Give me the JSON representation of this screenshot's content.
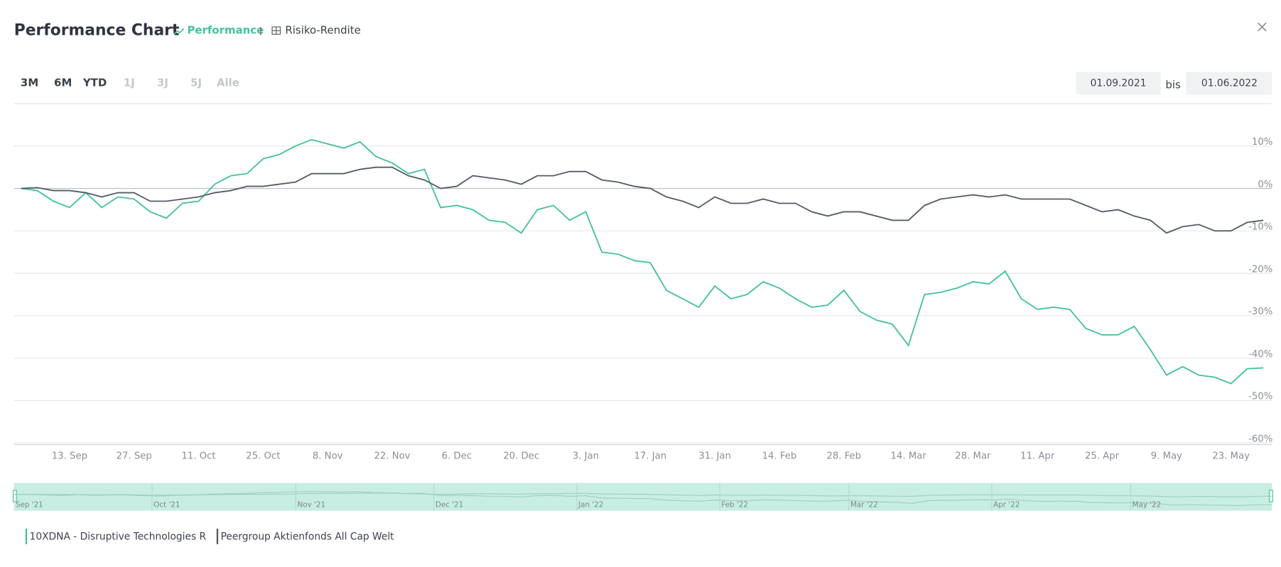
{
  "header": {
    "title": "Performance Chart",
    "tab_active": "Performance",
    "tab_other": "Risiko-Rendite"
  },
  "periods": [
    "3M",
    "6M",
    "YTD",
    "1J",
    "3J",
    "5J",
    "Alle"
  ],
  "date_range": {
    "from": "01.09.2021",
    "separator": "bis",
    "to": "01.06.2022"
  },
  "navigator": {
    "labels": [
      "Sep '21",
      "Oct '21",
      "Nov '21",
      "Dec '21",
      "Jan '22",
      "Feb '22",
      "Mar '22",
      "Apr '22",
      "May '22"
    ]
  },
  "chart_data": {
    "type": "line",
    "categories": [
      null,
      null,
      null,
      "13. Sep",
      null,
      null,
      null,
      "27. Sep",
      null,
      null,
      null,
      "11. Oct",
      null,
      null,
      null,
      "25. Oct",
      null,
      null,
      null,
      "8. Nov",
      null,
      null,
      null,
      "22. Nov",
      null,
      null,
      null,
      "6. Dec",
      null,
      null,
      null,
      "20. Dec",
      null,
      null,
      null,
      "3. Jan",
      null,
      null,
      null,
      "17. Jan",
      null,
      null,
      null,
      "31. Jan",
      null,
      null,
      null,
      "14. Feb",
      null,
      null,
      null,
      "28. Feb",
      null,
      null,
      null,
      "14. Mar",
      null,
      null,
      null,
      "28. Mar",
      null,
      null,
      null,
      "11. Apr",
      null,
      null,
      null,
      "25. Apr",
      null,
      null,
      null,
      "9. May",
      null,
      null,
      null,
      "23. May",
      null,
      null
    ],
    "series": [
      {
        "name": "10XDNA - Disruptive Technologies R",
        "color": "#45c19c",
        "values": [
          0,
          -0.5,
          -3,
          -4.5,
          -1,
          -4.5,
          -2,
          -2.5,
          -5.5,
          -7,
          -3.5,
          -3,
          1,
          3,
          3.5,
          7,
          8,
          10,
          11.5,
          10.5,
          9.5,
          11,
          7.5,
          6,
          3.5,
          4.5,
          -4.5,
          -4,
          -5,
          -7.5,
          -8,
          -10.5,
          -5,
          -4,
          -7.5,
          -5.5,
          -15,
          -15.5,
          -17,
          -17.5,
          -24,
          -26,
          -28,
          -23,
          -26,
          -25,
          -22,
          -23.5,
          -26,
          -28,
          -27.5,
          -24,
          -29,
          -31,
          -32,
          -37,
          -25,
          -24.5,
          -23.5,
          -22,
          -22.5,
          -19.5,
          -26,
          -28.5,
          -28,
          -28.5,
          -33,
          -34.5,
          -34.5,
          -32.5,
          -38,
          -44,
          -42,
          -44,
          -44.5,
          -46,
          -42.5,
          -42.3
        ]
      },
      {
        "name": "Peergroup Aktienfonds All Cap Welt",
        "color": "#555b66",
        "values": [
          0,
          0.2,
          -0.5,
          -0.5,
          -1,
          -2,
          -1,
          -1,
          -3,
          -3,
          -2.5,
          -2,
          -1,
          -0.5,
          0.5,
          0.5,
          1,
          1.5,
          3.5,
          3.5,
          3.5,
          4.5,
          5,
          5,
          3,
          2,
          0,
          0.5,
          3,
          2.5,
          2,
          1,
          3,
          3,
          4,
          4,
          2,
          1.5,
          0.5,
          0,
          -2,
          -3,
          -4.5,
          -2,
          -3.5,
          -3.5,
          -2.5,
          -3.5,
          -3.5,
          -5.5,
          -6.5,
          -5.5,
          -5.5,
          -6.5,
          -7.5,
          -7.5,
          -4,
          -2.5,
          -2,
          -1.5,
          -2,
          -1.5,
          -2.5,
          -2.5,
          -2.5,
          -2.5,
          -4,
          -5.5,
          -5,
          -6.5,
          -7.5,
          -10.5,
          -9,
          -8.5,
          -10,
          -10,
          -8,
          -7.5
        ]
      }
    ],
    "ylim": [
      -60,
      20
    ],
    "yticks": [
      {
        "value": -60,
        "label": "-60%"
      },
      {
        "value": -50,
        "label": "-50%"
      },
      {
        "value": -40,
        "label": "-40%"
      },
      {
        "value": -30,
        "label": "-30%"
      },
      {
        "value": -20,
        "label": "-20%"
      },
      {
        "value": -10,
        "label": "-10%"
      },
      {
        "value": 0,
        "label": "0%"
      },
      {
        "value": 10,
        "label": "10%"
      }
    ],
    "grid": true
  }
}
